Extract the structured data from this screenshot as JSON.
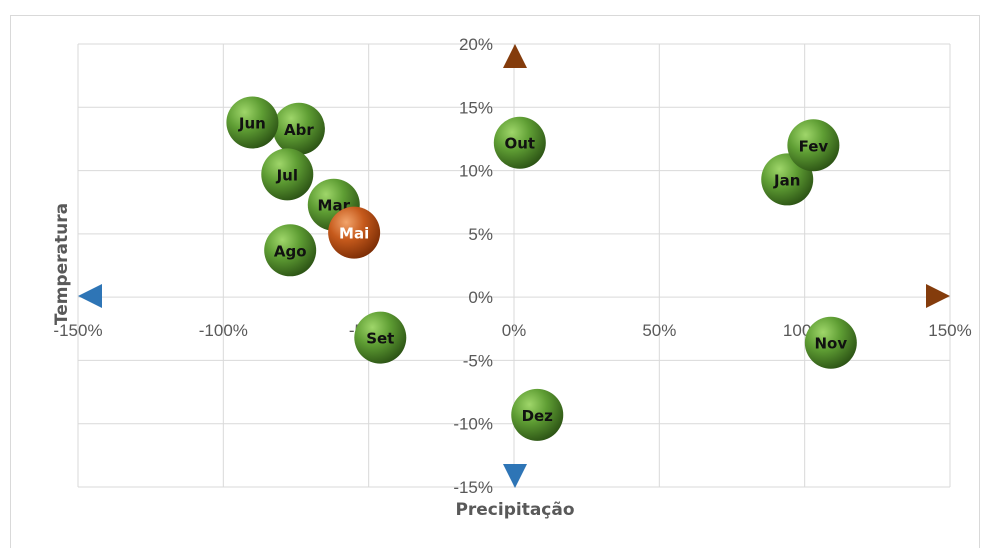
{
  "chart_data": {
    "type": "scatter",
    "xlabel": "Precipitação",
    "ylabel": "Temperatura",
    "xlim": [
      -1.5,
      1.5
    ],
    "ylim": [
      -0.15,
      0.2
    ],
    "x_ticks": [
      -1.5,
      -1.0,
      -0.5,
      0.0,
      0.5,
      1.0,
      1.5
    ],
    "y_ticks": [
      -0.15,
      -0.1,
      -0.05,
      0.0,
      0.05,
      0.1,
      0.15,
      0.2
    ],
    "x_tick_labels": [
      "-150%",
      "-100%",
      "-50%",
      "0%",
      "50%",
      "100%",
      "150%"
    ],
    "y_tick_labels": [
      "-15%",
      "-10%",
      "-5%",
      "0%",
      "5%",
      "10%",
      "15%",
      "20%"
    ],
    "grid": true,
    "colors": {
      "green_bubble": "#4e8a2a",
      "highlight_bubble": "#c0521a",
      "axis_blue": "#2e75b6",
      "axis_brown": "#8b4513",
      "axis_orange": "#c55a11"
    },
    "points": [
      {
        "label": "Jan",
        "x": 0.94,
        "y": 0.093,
        "highlight": false
      },
      {
        "label": "Fev",
        "x": 1.03,
        "y": 0.12,
        "highlight": false
      },
      {
        "label": "Mar",
        "x": -0.62,
        "y": 0.073,
        "highlight": false
      },
      {
        "label": "Abr",
        "x": -0.74,
        "y": 0.133,
        "highlight": false
      },
      {
        "label": "Mai",
        "x": -0.55,
        "y": 0.051,
        "highlight": true
      },
      {
        "label": "Jun",
        "x": -0.9,
        "y": 0.138,
        "highlight": false
      },
      {
        "label": "Jul",
        "x": -0.78,
        "y": 0.097,
        "highlight": false
      },
      {
        "label": "Ago",
        "x": -0.77,
        "y": 0.037,
        "highlight": false
      },
      {
        "label": "Set",
        "x": -0.46,
        "y": -0.032,
        "highlight": false
      },
      {
        "label": "Out",
        "x": 0.02,
        "y": 0.122,
        "highlight": false
      },
      {
        "label": "Nov",
        "x": 1.09,
        "y": -0.036,
        "highlight": false
      },
      {
        "label": "Dez",
        "x": 0.08,
        "y": -0.093,
        "highlight": false
      }
    ]
  }
}
